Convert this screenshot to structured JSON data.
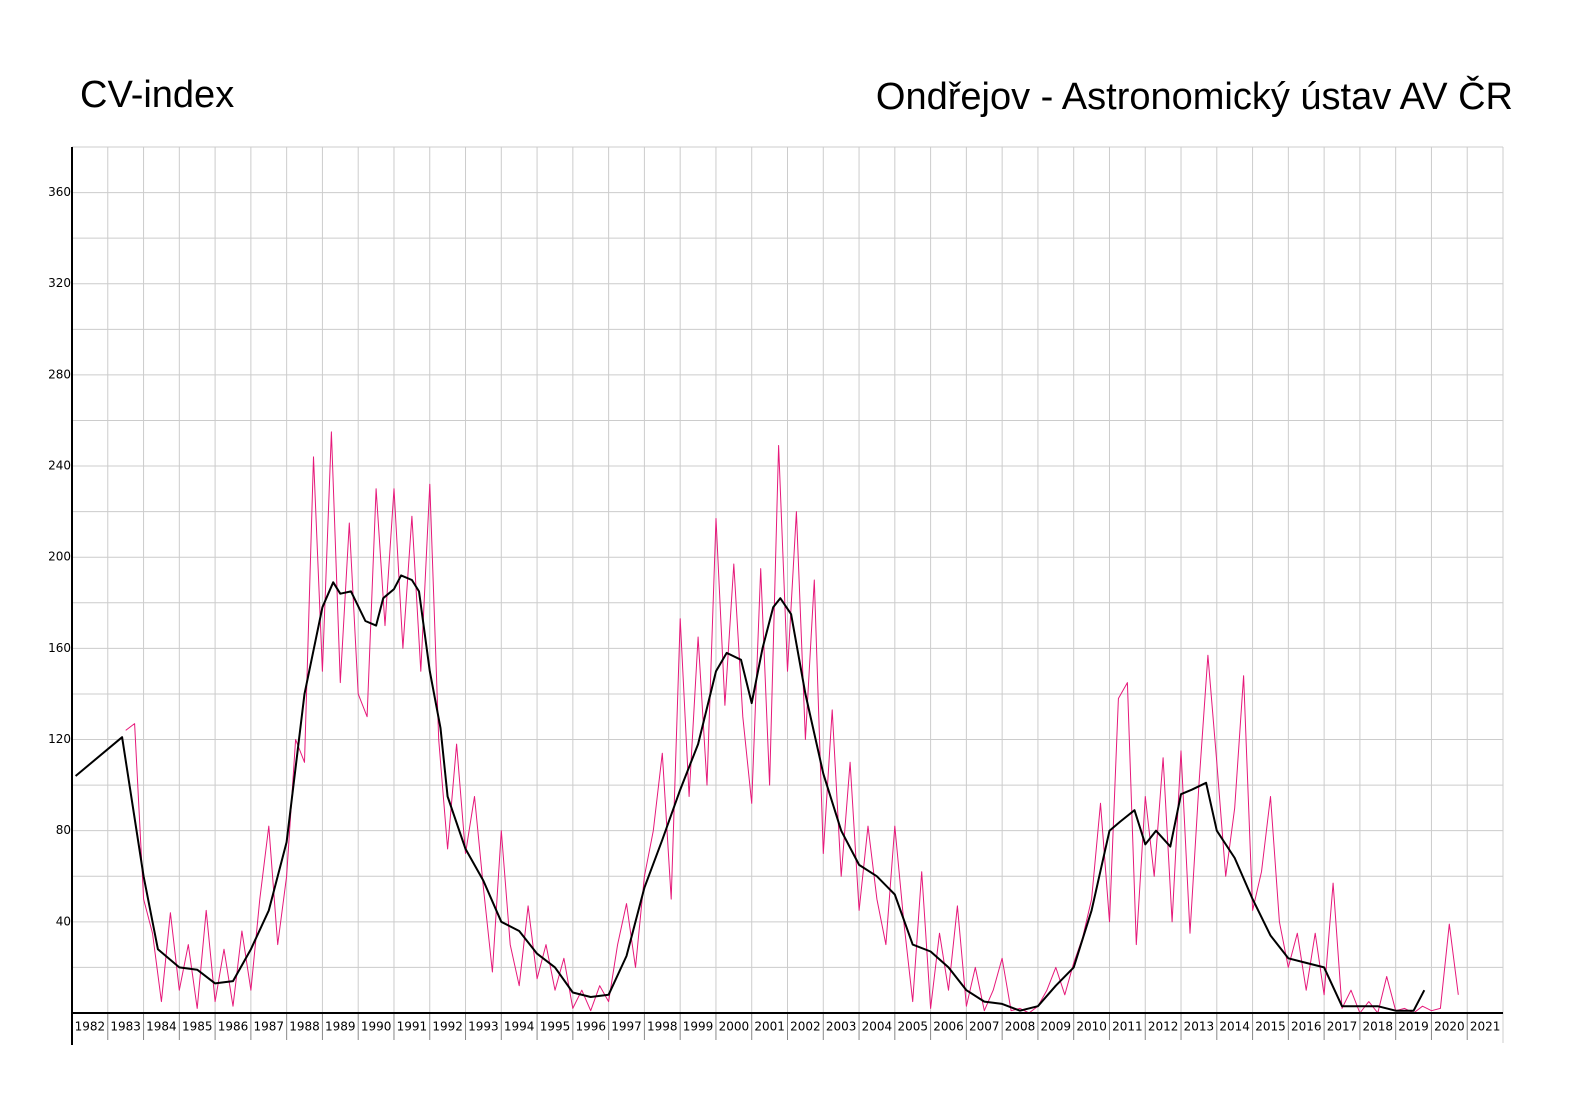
{
  "chart_data": {
    "type": "line",
    "title": "CV-index",
    "subtitle": "Ondřejov - Astronomický ústav AV ČR",
    "xlim": [
      1982,
      2022
    ],
    "xticks": [
      1982,
      1983,
      1984,
      1985,
      1986,
      1987,
      1988,
      1989,
      1990,
      1991,
      1992,
      1993,
      1994,
      1995,
      1996,
      1997,
      1998,
      1999,
      2000,
      2001,
      2002,
      2003,
      2004,
      2005,
      2006,
      2007,
      2008,
      2009,
      2010,
      2011,
      2012,
      2013,
      2014,
      2015,
      2016,
      2017,
      2018,
      2019,
      2020,
      2021
    ],
    "ylim": [
      0,
      380
    ],
    "yticks": [
      40,
      80,
      120,
      160,
      200,
      240,
      280,
      320,
      360
    ],
    "minor_yticks": [
      20,
      60,
      100,
      140,
      180,
      220,
      260,
      300,
      340
    ],
    "grid": true,
    "series": [
      {
        "color": "#e6197a",
        "x": [
          1983.5,
          1983.75,
          1984,
          1984.25,
          1984.5,
          1984.75,
          1985,
          1985.25,
          1985.5,
          1985.75,
          1986,
          1986.25,
          1986.5,
          1986.75,
          1987,
          1987.25,
          1987.5,
          1987.75,
          1988,
          1988.25,
          1988.5,
          1988.75,
          1989,
          1989.25,
          1989.5,
          1989.75,
          1990,
          1990.25,
          1990.5,
          1990.75,
          1991,
          1991.25,
          1991.5,
          1991.75,
          1992,
          1992.25,
          1992.5,
          1992.75,
          1993,
          1993.25,
          1993.5,
          1993.75,
          1994,
          1994.25,
          1994.5,
          1994.75,
          1995,
          1995.25,
          1995.5,
          1995.75,
          1996,
          1996.25,
          1996.5,
          1996.75,
          1997,
          1997.25,
          1997.5,
          1997.75,
          1998,
          1998.25,
          1998.5,
          1998.75,
          1999,
          1999.25,
          1999.5,
          1999.75,
          2000,
          2000.25,
          2000.5,
          2000.75,
          2001,
          2001.25,
          2001.5,
          2001.75,
          2002,
          2002.25,
          2002.5,
          2002.75,
          2003,
          2003.25,
          2003.5,
          2003.75,
          2004,
          2004.25,
          2004.5,
          2004.75,
          2005,
          2005.25,
          2005.5,
          2005.75,
          2006,
          2006.25,
          2006.5,
          2006.75,
          2007,
          2007.25,
          2007.5,
          2007.75,
          2008,
          2008.25,
          2008.5,
          2008.75,
          2009,
          2009.25,
          2009.5,
          2009.75,
          2010,
          2010.25,
          2010.5,
          2010.75,
          2011,
          2011.25,
          2011.5,
          2011.75,
          2012,
          2012.25,
          2012.5,
          2012.75,
          2013,
          2013.25,
          2013.5,
          2013.75,
          2014,
          2014.25,
          2014.5,
          2014.75,
          2015,
          2015.25,
          2015.5,
          2015.75,
          2016,
          2016.25,
          2016.5,
          2016.75,
          2017,
          2017.25,
          2017.5,
          2017.75,
          2018,
          2018.25,
          2018.5,
          2018.75,
          2019,
          2019.25,
          2019.5,
          2019.75,
          2020,
          2020.25,
          2020.5,
          2020.75
        ],
        "values": [
          124,
          127,
          50,
          35,
          5,
          44,
          10,
          30,
          2,
          45,
          5,
          28,
          3,
          36,
          10,
          50,
          82,
          30,
          60,
          120,
          110,
          244,
          150,
          255,
          145,
          215,
          140,
          130,
          230,
          170,
          230,
          160,
          218,
          150,
          232,
          120,
          72,
          118,
          70,
          95,
          55,
          18,
          80,
          30,
          12,
          47,
          15,
          30,
          10,
          24,
          2,
          10,
          1,
          12,
          5,
          30,
          48,
          20,
          60,
          80,
          114,
          50,
          173,
          95,
          165,
          100,
          217,
          135,
          197,
          130,
          92,
          195,
          100,
          249,
          150,
          220,
          120,
          190,
          70,
          133,
          60,
          110,
          45,
          82,
          50,
          30,
          82,
          40,
          5,
          62,
          2,
          35,
          10,
          47,
          3,
          20,
          1,
          10,
          24,
          1,
          2,
          0,
          3,
          10,
          20,
          8,
          22,
          33,
          50,
          92,
          40,
          138,
          145,
          30,
          95,
          60,
          112,
          40,
          115,
          35,
          100,
          157,
          110,
          60,
          90,
          148,
          45,
          62,
          95,
          40,
          20,
          35,
          10,
          35,
          8,
          57,
          2,
          10,
          0,
          5,
          0,
          16,
          1,
          2,
          0,
          3,
          1,
          2,
          39,
          8
        ]
      },
      {
        "color": "#000000",
        "x": [
          1982.1,
          1983.4,
          1984,
          1984.4,
          1985,
          1985.5,
          1986,
          1986.5,
          1987,
          1987.5,
          1988,
          1988.5,
          1989,
          1989.3,
          1989.5,
          1989.8,
          1990.2,
          1990.5,
          1990.7,
          1991,
          1991.2,
          1991.5,
          1991.7,
          1992,
          1992.3,
          1992.5,
          1993,
          1993.5,
          1994,
          1994.5,
          1995,
          1995.5,
          1996,
          1996.5,
          1997,
          1997.5,
          1998,
          1998.5,
          1999,
          1999.5,
          2000,
          2000.3,
          2000.7,
          2001,
          2001.3,
          2001.6,
          2001.8,
          2002.1,
          2002.5,
          2003,
          2003.5,
          2004,
          2004.5,
          2005,
          2005.5,
          2006,
          2006.5,
          2007,
          2007.5,
          2008,
          2008.5,
          2009,
          2009.5,
          2010,
          2010.5,
          2011,
          2011.3,
          2011.7,
          2012,
          2012.3,
          2012.7,
          2013,
          2013.3,
          2013.7,
          2014,
          2014.5,
          2015,
          2015.5,
          2016,
          2016.5,
          2017,
          2017.5,
          2018,
          2018.5,
          2019,
          2019.5,
          2019.8
        ],
        "values": [
          104,
          121,
          60,
          28,
          20,
          19,
          13,
          14,
          28,
          45,
          75,
          140,
          178,
          189,
          184,
          185,
          172,
          170,
          182,
          186,
          192,
          190,
          185,
          150,
          125,
          95,
          72,
          58,
          40,
          36,
          26,
          20,
          9,
          7,
          8,
          25,
          55,
          76,
          98,
          118,
          150,
          158,
          155,
          136,
          160,
          178,
          182,
          175,
          140,
          105,
          80,
          65,
          60,
          52,
          30,
          27,
          20,
          10,
          5,
          4,
          1,
          3,
          12,
          20,
          45,
          80,
          84,
          89,
          74,
          80,
          73,
          96,
          98,
          101,
          80,
          68,
          50,
          34,
          24,
          22,
          20,
          3,
          3,
          3,
          1,
          1,
          10
        ]
      }
    ]
  }
}
